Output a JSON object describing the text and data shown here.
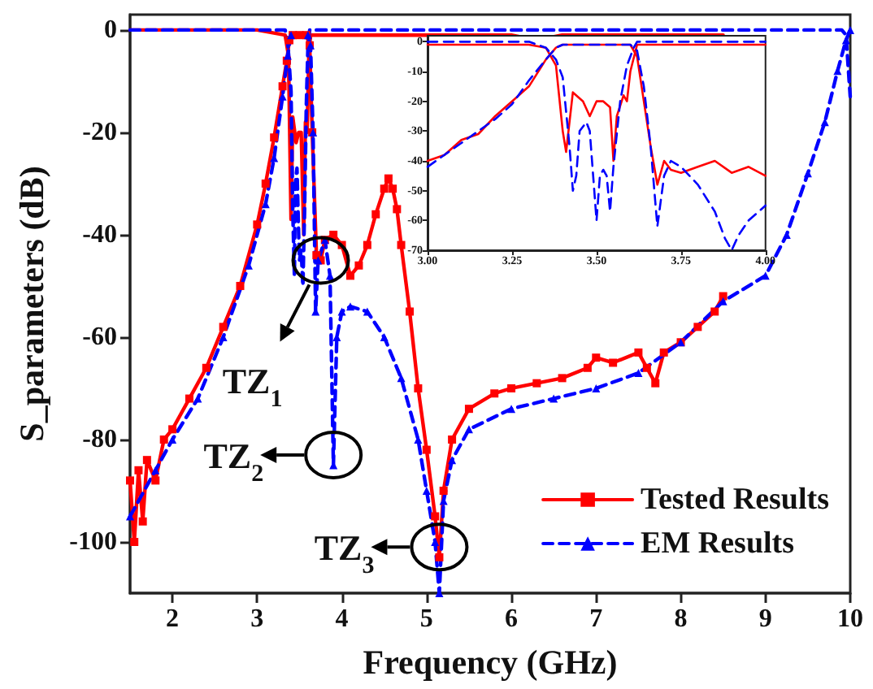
{
  "chart_data": [
    {
      "type": "line",
      "xlabel": "Frequency (GHz)",
      "ylabel": "S_parameters (dB)",
      "xlim": [
        1.5,
        10
      ],
      "xticks": [
        2,
        3,
        4,
        5,
        6,
        7,
        8,
        9,
        10
      ],
      "ylim": [
        -110,
        3
      ],
      "yticks": [
        -100,
        -80,
        -60,
        -40,
        -20,
        0
      ],
      "grid": false,
      "legend": "bottom right",
      "annotations": [
        {
          "text": "TZ$_{1}$",
          "x": 3.75,
          "y": -45
        },
        {
          "text": "TZ$_{2}$",
          "x": 3.9,
          "y": -83
        },
        {
          "text": "TZ$_{3}$",
          "x": 5.15,
          "y": -101
        }
      ],
      "series": [
        {
          "name": "Tested Results",
          "color": "#ff0000",
          "line_style": "solid",
          "marker": "square",
          "x": [
            1.5,
            1.55,
            1.6,
            1.65,
            1.7,
            1.8,
            1.9,
            2.0,
            2.2,
            2.4,
            2.6,
            2.8,
            3.0,
            3.1,
            3.2,
            3.3,
            3.35,
            3.38,
            3.42,
            3.5,
            3.58,
            3.62,
            3.65,
            3.7,
            3.75,
            3.8,
            3.9,
            4.0,
            4.1,
            4.2,
            4.3,
            4.4,
            4.5,
            4.55,
            4.6,
            4.65,
            4.7,
            4.8,
            4.9,
            5.0,
            5.1,
            5.15,
            5.2,
            5.3,
            5.5,
            5.8,
            6.0,
            6.3,
            6.6,
            6.9,
            7.0,
            7.2,
            7.5,
            7.6,
            7.7,
            7.8,
            8.0,
            8.2,
            8.4,
            8.5
          ],
          "values": [
            -88,
            -100,
            -86,
            -96,
            -84,
            -88,
            -80,
            -78,
            -72,
            -66,
            -58,
            -50,
            -38,
            -30,
            -21,
            -11,
            -6,
            -2,
            -1,
            -1,
            -1,
            -3,
            -20,
            -44,
            -45,
            -41,
            -40,
            -42,
            -48,
            -46,
            -42,
            -36,
            -31,
            -29,
            -31,
            -35,
            -42,
            -55,
            -70,
            -82,
            -95,
            -103,
            -90,
            -80,
            -74,
            -71,
            -70,
            -69,
            -68,
            -66,
            -64,
            -65,
            -63,
            -66,
            -69,
            -63,
            -61,
            -58,
            -55,
            -52
          ]
        },
        {
          "color": "#ff0000",
          "line_style": "solid",
          "x": [
            1.5,
            3.0,
            3.33,
            3.37,
            3.4,
            3.42,
            3.46,
            3.49,
            3.52,
            3.55,
            3.57,
            3.59,
            3.61,
            3.63,
            4.0,
            5.0,
            6.0,
            6.3,
            6.6,
            7.0,
            8.0,
            8.5
          ],
          "values": [
            0,
            0,
            -1,
            -5,
            -37,
            -17,
            -22,
            -20,
            -20,
            -40,
            -18,
            -20,
            -5,
            -1,
            -1,
            -1,
            -1,
            -2,
            -1,
            -1,
            -1,
            -1
          ]
        },
        {
          "name": "EM Results",
          "color": "#0000ff",
          "line_style": "dashed",
          "marker": "triangle",
          "x": [
            1.5,
            1.8,
            2.0,
            2.3,
            2.6,
            2.9,
            3.1,
            3.2,
            3.3,
            3.36,
            3.4,
            3.6,
            3.63,
            3.66,
            3.69,
            3.72,
            3.8,
            3.86,
            3.9,
            3.94,
            4.0,
            4.1,
            4.3,
            4.5,
            4.7,
            4.9,
            5.0,
            5.1,
            5.15,
            5.2,
            5.3,
            5.5,
            6.0,
            6.5,
            7.0,
            7.5,
            8.0,
            8.5,
            9.0,
            9.25,
            9.5,
            9.7,
            9.85,
            9.95,
            10
          ],
          "values": [
            -95,
            -86,
            -80,
            -72,
            -60,
            -46,
            -34,
            -25,
            -13,
            -5,
            -1,
            -1,
            -3,
            -20,
            -55,
            -45,
            -41,
            -48,
            -85,
            -60,
            -55,
            -54,
            -55,
            -60,
            -68,
            -80,
            -90,
            -100,
            -110,
            -92,
            -84,
            -78,
            -74,
            -72,
            -70,
            -67,
            -61,
            -53,
            -48,
            -40,
            -28,
            -18,
            -8,
            -2,
            0
          ]
        },
        {
          "color": "#0000ff",
          "line_style": "dashed",
          "x": [
            1.5,
            3.33,
            3.36,
            3.4,
            3.42,
            3.44,
            3.45,
            3.47,
            3.49,
            3.5,
            3.52,
            3.53,
            3.54,
            3.56,
            3.58,
            3.6,
            3.62,
            9.9,
            9.95,
            10
          ],
          "values": [
            0,
            0,
            -2,
            -12,
            -35,
            -48,
            -30,
            -27,
            -40,
            -45,
            -43,
            -43,
            -50,
            -35,
            -15,
            -3,
            0,
            0,
            -1,
            -13
          ]
        }
      ]
    },
    {
      "type": "line",
      "xlim": [
        3,
        4
      ],
      "xticks": [
        {
          "value": 3,
          "label": "3.00"
        },
        {
          "value": 3.25,
          "label": "3.25"
        },
        {
          "value": 3.5,
          "label": "3.50"
        },
        {
          "value": 3.75,
          "label": "3.75"
        },
        {
          "value": 4,
          "label": "4.00"
        }
      ],
      "ylim": [
        -70,
        2
      ],
      "yticks": [
        -70,
        -60,
        -50,
        -40,
        -30,
        -20,
        -10,
        0
      ],
      "grid": false,
      "legend": false,
      "series": [
        {
          "color": "#ff0000",
          "line_style": "solid",
          "x": [
            3.0,
            3.05,
            3.1,
            3.15,
            3.2,
            3.25,
            3.3,
            3.35,
            3.38,
            3.4,
            3.5,
            3.6,
            3.62,
            3.64,
            3.66,
            3.68,
            3.7,
            3.72,
            3.75,
            3.8,
            3.85,
            3.9,
            3.95,
            4.0
          ],
          "values": [
            -40,
            -38,
            -33,
            -31,
            -25,
            -20,
            -15,
            -6,
            -2,
            -1,
            -1,
            -1,
            -5,
            -20,
            -35,
            -48,
            -40,
            -43,
            -44,
            -42,
            -40,
            -44,
            -42,
            -45
          ]
        },
        {
          "color": "#ff0000",
          "line_style": "solid",
          "x": [
            3.0,
            3.3,
            3.35,
            3.38,
            3.4,
            3.41,
            3.43,
            3.46,
            3.48,
            3.5,
            3.52,
            3.54,
            3.55,
            3.56,
            3.58,
            3.59,
            3.6,
            3.62,
            3.7,
            3.8,
            4.0
          ],
          "values": [
            -1,
            -1,
            -2,
            -8,
            -30,
            -37,
            -17,
            -20,
            -25,
            -20,
            -20,
            -22,
            -40,
            -25,
            -18,
            -20,
            -10,
            -1,
            -1,
            -1,
            -1
          ]
        },
        {
          "color": "#0000ff",
          "line_style": "dashed",
          "x": [
            3.0,
            3.1,
            3.2,
            3.25,
            3.3,
            3.35,
            3.38,
            3.4,
            3.5,
            3.6,
            3.62,
            3.64,
            3.66,
            3.68,
            3.7,
            3.72,
            3.75,
            3.8,
            3.85,
            3.88,
            3.9,
            3.92,
            3.95,
            4.0
          ],
          "values": [
            -42,
            -34,
            -26,
            -21,
            -13,
            -6,
            -2,
            -1,
            -1,
            -1,
            -3,
            -15,
            -35,
            -62,
            -45,
            -40,
            -42,
            -48,
            -57,
            -66,
            -70,
            -65,
            -60,
            -55
          ]
        },
        {
          "color": "#0000ff",
          "line_style": "dashed",
          "x": [
            3.0,
            3.3,
            3.35,
            3.38,
            3.4,
            3.42,
            3.43,
            3.44,
            3.45,
            3.47,
            3.48,
            3.49,
            3.5,
            3.51,
            3.52,
            3.53,
            3.54,
            3.55,
            3.57,
            3.59,
            3.61,
            3.62,
            4.0
          ],
          "values": [
            0,
            0,
            -2,
            -6,
            -12,
            -35,
            -50,
            -45,
            -30,
            -27,
            -30,
            -45,
            -60,
            -45,
            -43,
            -45,
            -57,
            -42,
            -20,
            -8,
            -2,
            0,
            0
          ]
        }
      ]
    }
  ]
}
